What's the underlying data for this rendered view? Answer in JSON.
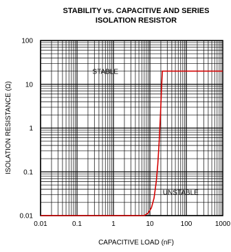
{
  "chart_data": {
    "type": "line",
    "title_line1": "STABILITY vs. CAPACITIVE AND SERIES",
    "title_line2": "ISOLATION RESISTOR",
    "xlabel": "CAPACITIVE  LOAD (nF)",
    "ylabel": "ISOLATION  RESISTANCE  (Ω)",
    "x_scale": "log",
    "y_scale": "log",
    "xlim": [
      0.01,
      1000
    ],
    "ylim": [
      0.01,
      100
    ],
    "x_ticks": [
      0.01,
      0.1,
      1,
      10,
      100,
      1000
    ],
    "x_tick_labels": [
      "0.01",
      "0.1",
      "1",
      "10",
      "100",
      "1000"
    ],
    "y_ticks": [
      0.01,
      0.1,
      1,
      10,
      100
    ],
    "y_tick_labels": [
      "0.01",
      "0.1",
      "1",
      "10",
      "100"
    ],
    "grid": true,
    "annotations": [
      {
        "text": "STABLE",
        "x": 0.6,
        "y": 20
      },
      {
        "text": "UNSTABLE",
        "x": 70,
        "y": 0.035
      }
    ],
    "series": [
      {
        "color": "#d40000",
        "x": [
          0.01,
          7,
          9,
          11,
          13,
          15,
          16.5,
          18,
          19.5,
          21,
          22,
          24,
          1000
        ],
        "y": [
          0.01,
          0.01,
          0.0115,
          0.015,
          0.025,
          0.06,
          0.15,
          0.5,
          2,
          9,
          20,
          20,
          20
        ]
      }
    ]
  }
}
